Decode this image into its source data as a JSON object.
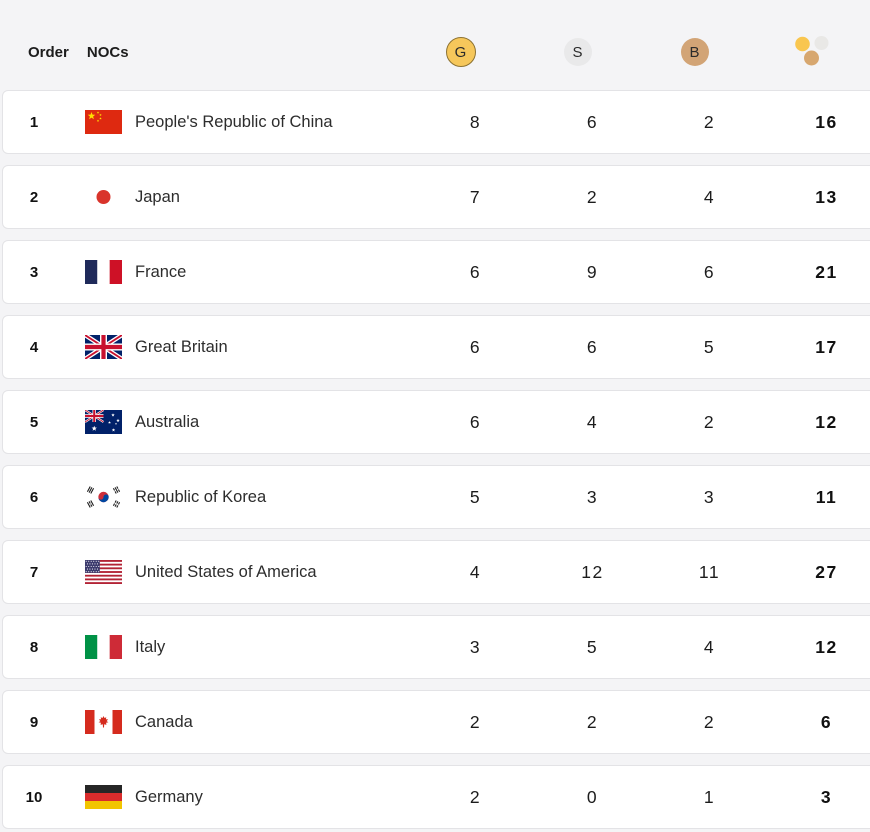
{
  "page": {
    "background": "#f4f4f6",
    "card_background": "#ffffff",
    "card_border": "#e3e3e6"
  },
  "header": {
    "order_label": "Order",
    "nocs_label": "NOCs",
    "gold_label": "G",
    "silver_label": "S",
    "bronze_label": "B",
    "colors": {
      "gold": "#f6c75b",
      "gold_border": "#8d7231",
      "silver": "#e9e9ea",
      "bronze": "#d2a476",
      "cluster_gold": "#f9c64f",
      "cluster_silver": "#e9e8e6",
      "cluster_bronze": "#d7a76f"
    }
  },
  "table": {
    "rows": [
      {
        "order": "1",
        "flag": "cn",
        "noc": "People's Republic of China",
        "gold": "8",
        "silver": "6",
        "bronze": "2",
        "total": "16"
      },
      {
        "order": "2",
        "flag": "jp",
        "noc": "Japan",
        "gold": "7",
        "silver": "2",
        "bronze": "4",
        "total": "13"
      },
      {
        "order": "3",
        "flag": "fr",
        "noc": "France",
        "gold": "6",
        "silver": "9",
        "bronze": "6",
        "total": "21"
      },
      {
        "order": "4",
        "flag": "gb",
        "noc": "Great Britain",
        "gold": "6",
        "silver": "6",
        "bronze": "5",
        "total": "17"
      },
      {
        "order": "5",
        "flag": "au",
        "noc": "Australia",
        "gold": "6",
        "silver": "4",
        "bronze": "2",
        "total": "12"
      },
      {
        "order": "6",
        "flag": "kr",
        "noc": "Republic of Korea",
        "gold": "5",
        "silver": "3",
        "bronze": "3",
        "total": "11"
      },
      {
        "order": "7",
        "flag": "us",
        "noc": "United States of America",
        "gold": "4",
        "silver": "12",
        "bronze": "11",
        "total": "27"
      },
      {
        "order": "8",
        "flag": "it",
        "noc": "Italy",
        "gold": "3",
        "silver": "5",
        "bronze": "4",
        "total": "12"
      },
      {
        "order": "9",
        "flag": "ca",
        "noc": "Canada",
        "gold": "2",
        "silver": "2",
        "bronze": "2",
        "total": "6"
      },
      {
        "order": "10",
        "flag": "de",
        "noc": "Germany",
        "gold": "2",
        "silver": "0",
        "bronze": "1",
        "total": "3"
      }
    ]
  }
}
